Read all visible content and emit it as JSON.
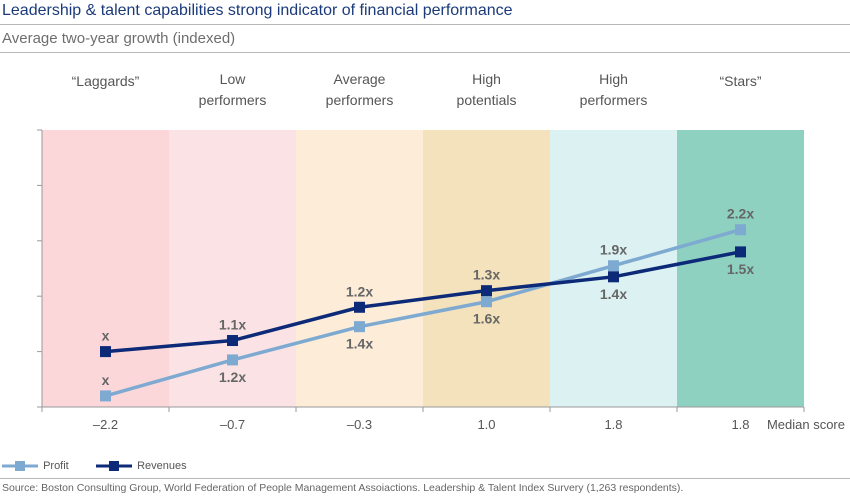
{
  "header": {
    "title": "Leadership & talent capabilities strong indicator of financial performance",
    "subtitle": "Average two-year growth (indexed)"
  },
  "chart_data": {
    "type": "line",
    "categories": [
      "“Laggards”",
      "Low performers",
      "Average performers",
      "High potentials",
      "High performers",
      "“Stars”"
    ],
    "median_scores": [
      "–2.2",
      "–0.7",
      "–0.3",
      "1.0",
      "1.8",
      "1.8"
    ],
    "x_axis_label": "Median score",
    "band_colors": [
      "#fbd7da",
      "#fbe3e5",
      "#fcecd8",
      "#f4e2bc",
      "#dbf1f2",
      "#8ed1c1"
    ],
    "series": [
      {
        "name": "Profit",
        "color": "#7eaad1",
        "values": [
          0.2,
          0.85,
          1.45,
          1.9,
          2.55,
          3.2
        ],
        "labels": [
          "x",
          "1.2x",
          "1.4x",
          "1.6x",
          "1.9x",
          "2.2x"
        ],
        "label_pos": [
          "above",
          "below",
          "below",
          "below",
          "above",
          "above"
        ]
      },
      {
        "name": "Revenues",
        "color": "#0d2a78",
        "values": [
          1.0,
          1.2,
          1.8,
          2.1,
          2.35,
          2.8
        ],
        "labels": [
          "x",
          "1.1x",
          "1.2x",
          "1.3x",
          "1.4x",
          "1.5x"
        ],
        "label_pos": [
          "above",
          "above",
          "above",
          "above",
          "below",
          "below"
        ]
      }
    ],
    "ylim": [
      0,
      5
    ],
    "y_tick_count": 5,
    "grid": false,
    "legend_position": "bottom-left"
  },
  "source": "Source: Boston Consulting Group, World Federation of People Management Assoiactions. Leadership & Talent Index Survery (1,263 respondents)."
}
